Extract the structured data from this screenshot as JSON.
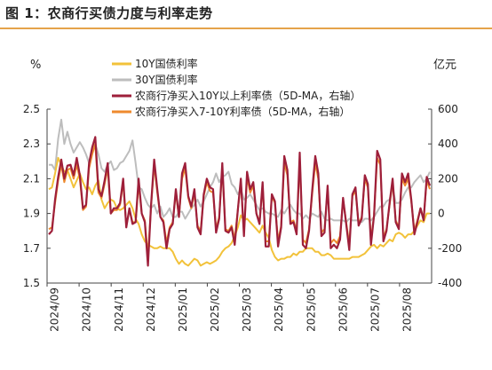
{
  "figure_title": "图 1：农商行买债力度与利率走势",
  "chart_data": {
    "type": "line",
    "left_axis": {
      "unit": "%",
      "ylim": [
        1.5,
        2.5
      ],
      "ticks": [
        "1.5",
        "1.7",
        "1.9",
        "2.1",
        "2.3",
        "2.5"
      ]
    },
    "right_axis": {
      "unit": "亿元",
      "ylim": [
        -400,
        600
      ],
      "ticks": [
        "-400",
        "-200",
        "0",
        "200",
        "400",
        "600"
      ]
    },
    "x_labels": [
      "2024/09",
      "2024/10",
      "2024/11",
      "2024/12",
      "2025/01",
      "2025/02",
      "2025/03",
      "2025/04",
      "2025/05",
      "2025/06",
      "2025/07",
      "2025/08"
    ],
    "grid": false,
    "legend_position": "top",
    "series": [
      {
        "name": "10Y国债利率",
        "axis": "left",
        "color": "#F2C23A",
        "values": [
          2.04,
          2.05,
          2.13,
          2.22,
          2.18,
          2.14,
          2.15,
          2.1,
          2.05,
          2.09,
          2.13,
          2.08,
          2.04,
          2.05,
          2.01,
          2.06,
          2.09,
          1.98,
          1.93,
          1.96,
          1.98,
          1.97,
          1.93,
          1.92,
          1.93,
          1.95,
          1.97,
          1.93,
          1.87,
          1.84,
          1.78,
          1.74,
          1.72,
          1.71,
          1.7,
          1.7,
          1.71,
          1.7,
          1.7,
          1.7,
          1.68,
          1.64,
          1.61,
          1.63,
          1.61,
          1.6,
          1.62,
          1.64,
          1.63,
          1.6,
          1.61,
          1.62,
          1.61,
          1.62,
          1.63,
          1.65,
          1.68,
          1.7,
          1.71,
          1.73,
          1.77,
          1.82,
          1.89,
          1.86,
          1.87,
          1.85,
          1.83,
          1.81,
          1.79,
          1.83,
          1.79,
          1.76,
          1.69,
          1.65,
          1.63,
          1.64,
          1.64,
          1.65,
          1.65,
          1.67,
          1.66,
          1.68,
          1.68,
          1.7,
          1.7,
          1.7,
          1.68,
          1.68,
          1.66,
          1.66,
          1.67,
          1.66,
          1.64,
          1.64,
          1.64,
          1.64,
          1.64,
          1.64,
          1.65,
          1.65,
          1.65,
          1.66,
          1.67,
          1.69,
          1.71,
          1.72,
          1.7,
          1.72,
          1.71,
          1.73,
          1.75,
          1.74,
          1.78,
          1.79,
          1.78,
          1.76,
          1.78,
          1.78,
          1.8,
          1.83,
          1.86,
          1.85,
          1.9,
          1.9
        ]
      },
      {
        "name": "30Y国债利率",
        "axis": "left",
        "color": "#BDBDBD",
        "values": [
          2.18,
          2.18,
          2.15,
          2.33,
          2.44,
          2.3,
          2.37,
          2.3,
          2.25,
          2.28,
          2.31,
          2.28,
          2.24,
          2.19,
          2.26,
          2.3,
          2.24,
          2.16,
          2.14,
          2.18,
          2.2,
          2.15,
          2.16,
          2.19,
          2.2,
          2.23,
          2.26,
          2.32,
          2.19,
          2.05,
          2.04,
          1.99,
          1.95,
          1.93,
          1.95,
          1.9,
          1.94,
          1.88,
          1.9,
          1.93,
          1.88,
          1.88,
          1.91,
          1.91,
          1.87,
          1.9,
          1.93,
          1.95,
          1.98,
          1.94,
          1.97,
          2.01,
          2.05,
          2.08,
          2.13,
          2.08,
          2.11,
          2.12,
          2.14,
          2.07,
          2.05,
          2.01,
          2.04,
          1.98,
          1.99,
          2.01,
          1.98,
          1.95,
          1.92,
          1.93,
          1.91,
          1.9,
          1.9,
          1.89,
          1.88,
          1.92,
          1.9,
          1.93,
          1.95,
          1.92,
          1.9,
          1.9,
          1.87,
          1.89,
          1.87,
          1.9,
          1.89,
          1.88,
          1.91,
          1.87,
          1.86,
          1.87,
          1.86,
          1.86,
          1.86,
          1.86,
          1.85,
          1.87,
          1.86,
          1.86,
          1.86,
          1.85,
          1.87,
          1.87,
          1.86,
          1.88,
          1.91,
          1.94,
          1.94,
          1.97,
          1.98,
          2.05,
          1.96,
          1.96,
          1.98,
          2.02,
          2.05,
          2.05,
          2.08,
          2.1,
          2.12,
          2.08,
          2.1,
          2.14
        ]
      },
      {
        "name": "农商行净买入10Y以上利率债（5D-MA，右轴）",
        "axis": "right",
        "color": "#9E1F3A",
        "values": [
          -120,
          -100,
          80,
          210,
          310,
          200,
          275,
          280,
          220,
          320,
          220,
          30,
          50,
          290,
          380,
          440,
          140,
          100,
          190,
          290,
          0,
          30,
          30,
          60,
          200,
          -80,
          30,
          -60,
          -50,
          200,
          0,
          -50,
          -300,
          50,
          310,
          140,
          -20,
          -50,
          -200,
          -90,
          -60,
          140,
          -20,
          230,
          290,
          100,
          40,
          140,
          -80,
          -120,
          110,
          200,
          150,
          140,
          -110,
          -30,
          290,
          -100,
          -110,
          -80,
          -180,
          20,
          200,
          -130,
          240,
          140,
          180,
          0,
          -60,
          180,
          -190,
          -190,
          110,
          70,
          -190,
          -80,
          330,
          250,
          -60,
          -50,
          -120,
          350,
          -180,
          -200,
          -100,
          130,
          330,
          230,
          -130,
          -110,
          160,
          -200,
          -180,
          -200,
          -150,
          90,
          -60,
          -210,
          110,
          150,
          -70,
          -30,
          220,
          170,
          -180,
          -10,
          360,
          310,
          -160,
          -100,
          60,
          200,
          -50,
          -90,
          230,
          180,
          230,
          80,
          -120,
          -50,
          30,
          -40,
          210,
          160
        ]
      },
      {
        "name": "农商行净买入7-10Y利率债（5D-MA，右轴）",
        "axis": "right",
        "color": "#EE8A2E",
        "values": [
          -90,
          -80,
          60,
          190,
          280,
          180,
          250,
          260,
          200,
          280,
          200,
          20,
          40,
          260,
          340,
          400,
          120,
          90,
          170,
          260,
          0,
          20,
          20,
          50,
          180,
          -70,
          20,
          -50,
          -50,
          170,
          0,
          -40,
          -250,
          40,
          280,
          120,
          -20,
          -40,
          -170,
          -80,
          -50,
          120,
          -20,
          200,
          260,
          90,
          30,
          120,
          -70,
          -100,
          100,
          180,
          130,
          120,
          -90,
          -20,
          260,
          -90,
          -100,
          -70,
          -150,
          20,
          180,
          -110,
          210,
          120,
          160,
          0,
          -50,
          160,
          -160,
          -160,
          100,
          60,
          -160,
          -70,
          290,
          220,
          -50,
          -40,
          -100,
          310,
          -150,
          -170,
          -90,
          110,
          290,
          200,
          -110,
          -90,
          140,
          -170,
          -150,
          -170,
          -130,
          80,
          -50,
          -180,
          100,
          130,
          -60,
          -20,
          200,
          150,
          -150,
          -10,
          320,
          280,
          -140,
          -90,
          50,
          180,
          -40,
          -80,
          200,
          160,
          200,
          70,
          -100,
          -40,
          30,
          -30,
          190,
          140
        ]
      }
    ]
  }
}
